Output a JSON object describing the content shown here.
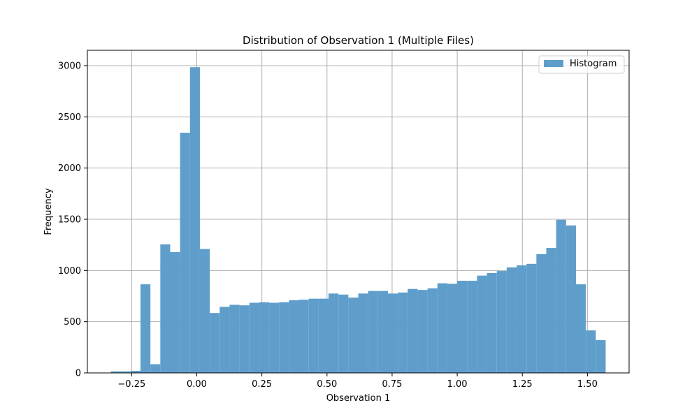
{
  "chart_data": {
    "type": "bar",
    "title": "Distribution of Observation 1 (Multiple Files)",
    "xlabel": "Observation 1",
    "ylabel": "Frequency",
    "xlim": [
      -0.42,
      1.66
    ],
    "ylim": [
      0,
      3150
    ],
    "grid": true,
    "legend_position": "top-right",
    "x_ticks": [
      -0.25,
      0.0,
      0.25,
      0.5,
      0.75,
      1.0,
      1.25,
      1.5
    ],
    "x_tick_labels": [
      "−0.25",
      "0.00",
      "0.25",
      "0.50",
      "0.75",
      "1.00",
      "1.25",
      "1.50"
    ],
    "y_ticks": [
      0,
      500,
      1000,
      1500,
      2000,
      2500,
      3000
    ],
    "y_tick_labels": [
      "0",
      "500",
      "1000",
      "1500",
      "2000",
      "2500",
      "3000"
    ],
    "bin_edges": [
      -0.33,
      -0.292,
      -0.254,
      -0.216,
      -0.178,
      -0.14,
      -0.102,
      -0.064,
      -0.026,
      0.012,
      0.05,
      0.088,
      0.126,
      0.164,
      0.202,
      0.24,
      0.278,
      0.316,
      0.354,
      0.392,
      0.43,
      0.468,
      0.506,
      0.544,
      0.582,
      0.62,
      0.658,
      0.696,
      0.734,
      0.772,
      0.81,
      0.848,
      0.886,
      0.924,
      0.962,
      1.0,
      1.038,
      1.076,
      1.114,
      1.152,
      1.19,
      1.228,
      1.266,
      1.304,
      1.342,
      1.38,
      1.418,
      1.456,
      1.494,
      1.532,
      1.57
    ],
    "series": [
      {
        "name": "Histogram",
        "color": "#5f9ecb",
        "values": [
          15,
          15,
          20,
          865,
          85,
          1255,
          1180,
          2345,
          2985,
          1210,
          585,
          645,
          665,
          660,
          685,
          690,
          685,
          690,
          710,
          715,
          725,
          725,
          775,
          765,
          735,
          775,
          800,
          800,
          775,
          785,
          820,
          810,
          825,
          875,
          870,
          900,
          900,
          950,
          975,
          995,
          1030,
          1050,
          1065,
          1160,
          1220,
          1495,
          1440,
          865,
          415,
          320
        ]
      }
    ]
  }
}
